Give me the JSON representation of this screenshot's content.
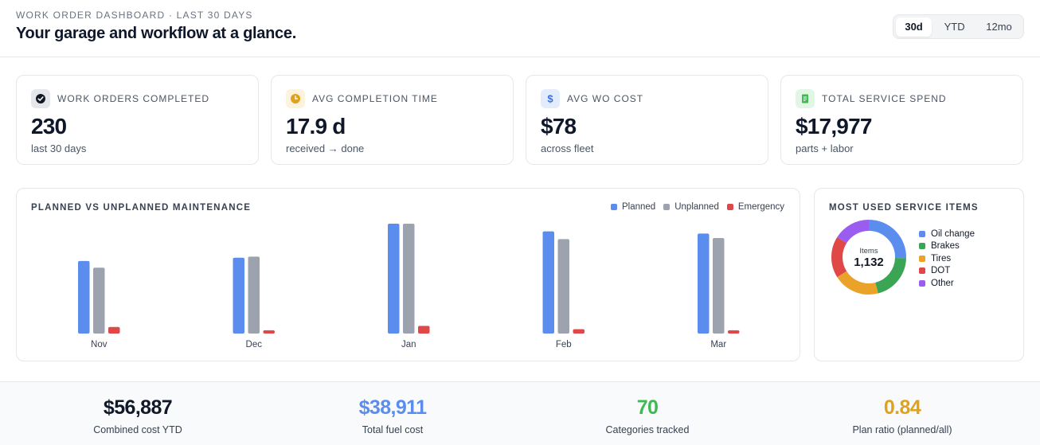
{
  "header": {
    "eyebrow": "WORK ORDER DASHBOARD · LAST 30 DAYS",
    "title": "Your garage and workflow at a glance.",
    "ranges": [
      "30d",
      "YTD",
      "12mo"
    ],
    "active_range": "30d"
  },
  "kpis": [
    {
      "label": "WORK ORDERS COMPLETED",
      "value": "230",
      "sub": "last 30 days",
      "icon": "check-circle-icon",
      "color": "#111827"
    },
    {
      "label": "AVG COMPLETION TIME",
      "value": "17.9 d",
      "sub": "received → done",
      "icon": "clock-icon",
      "color": "#e0a11b"
    },
    {
      "label": "AVG WO COST",
      "value": "$78",
      "sub": "across fleet",
      "icon": "dollar-icon",
      "color": "#3b6fe0"
    },
    {
      "label": "TOTAL SERVICE SPEND",
      "value": "$17,977",
      "sub": "parts + labor",
      "icon": "receipt-icon",
      "color": "#3fb950"
    }
  ],
  "chart_data": [
    {
      "type": "bar",
      "title": "PLANNED VS UNPLANNED MAINTENANCE",
      "categories": [
        "Nov",
        "Dec",
        "Jan",
        "Feb",
        "Mar"
      ],
      "series": [
        {
          "name": "Planned",
          "color": "#5b8def",
          "values": [
            66,
            69,
            100,
            93,
            91
          ]
        },
        {
          "name": "Unplanned",
          "color": "#9ca3af",
          "values": [
            60,
            70,
            100,
            86,
            87
          ]
        },
        {
          "name": "Emergency",
          "color": "#e04848",
          "values": [
            6,
            3,
            7,
            4,
            3
          ]
        }
      ],
      "ylim": [
        0,
        100
      ],
      "grid": false,
      "legend": "top-right"
    },
    {
      "type": "pie",
      "title": "MOST USED SERVICE ITEMS",
      "center_label": "Items",
      "center_value": "1,132",
      "categories": [
        "Oil change",
        "Brakes",
        "Tires",
        "DOT",
        "Other"
      ],
      "colors": [
        "#5b8def",
        "#3aa655",
        "#eaa229",
        "#e04848",
        "#9b5cf0"
      ],
      "values": [
        25.5,
        20.5,
        20,
        18,
        16
      ],
      "legend": "right"
    }
  ],
  "footer": [
    {
      "value": "$56,887",
      "label": "Combined cost YTD",
      "color": "#111827"
    },
    {
      "value": "$38,911",
      "label": "Total fuel cost",
      "color": "#5b8def"
    },
    {
      "value": "70",
      "label": "Categories tracked",
      "color": "#3fb950"
    },
    {
      "value": "0.84",
      "label": "Plan ratio (planned/all)",
      "color": "#e0a11b"
    }
  ]
}
